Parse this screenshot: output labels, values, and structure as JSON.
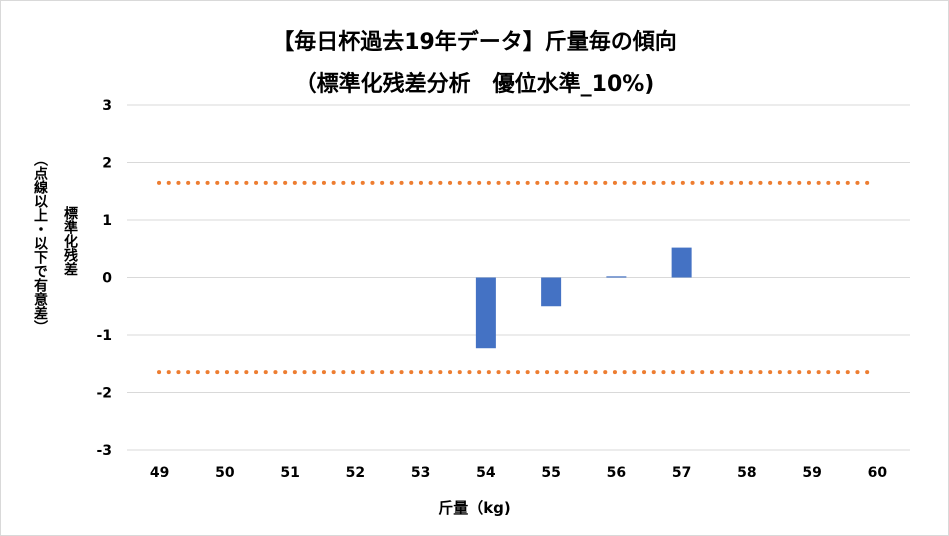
{
  "chart_data": {
    "type": "bar",
    "title_line1": "【毎日杯過去19年データ】斤量毎の傾向",
    "title_line2": "（標準化残差分析　優位水準_10%)",
    "ylabel_line1": "標準化残差",
    "ylabel_line2": "（点線以上・以下で有意差）",
    "xlabel": "斤量（kg)",
    "categories": [
      "49",
      "50",
      "51",
      "52",
      "53",
      "54",
      "55",
      "56",
      "57",
      "58",
      "59",
      "60"
    ],
    "values": [
      null,
      null,
      null,
      null,
      null,
      -1.23,
      -0.5,
      0.02,
      0.52,
      null,
      null,
      null
    ],
    "ylim": [
      -3,
      3
    ],
    "yticks": [
      "3",
      "2",
      "1",
      "0",
      "-1",
      "-2",
      "-3"
    ],
    "threshold_lines": [
      1.645,
      -1.645
    ],
    "grid": true,
    "legend": "none",
    "colors": {
      "bar": "#4472C4",
      "threshold": "#ED7D31",
      "grid": "#d9d9d9"
    }
  }
}
